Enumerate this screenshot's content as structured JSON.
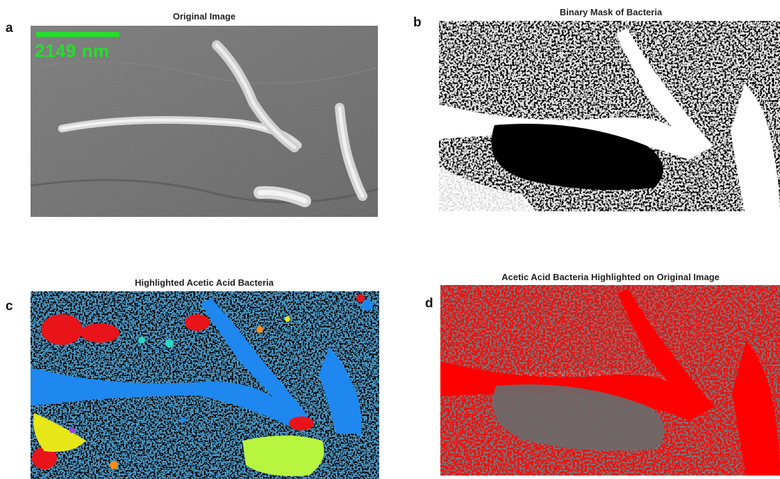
{
  "figure": {
    "panels": [
      {
        "letter": "a",
        "title": "Original Image"
      },
      {
        "letter": "b",
        "title": "Binary Mask of Bacteria"
      },
      {
        "letter": "c",
        "title": "Highlighted Acetic Acid Bacteria"
      },
      {
        "letter": "d",
        "title": "Acetic Acid Bacteria Highlighted on Original Image"
      }
    ],
    "scale_bar": {
      "label": "2149 nm",
      "color": "#22e02a"
    }
  },
  "colors": {
    "sem_gray": "#6e6e6e",
    "mask_white": "#ffffff",
    "mask_black": "#000000",
    "cluster_blue": "#1e88f0",
    "cluster_red": "#e8141a",
    "cluster_yellow": "#e6e619",
    "cluster_lime": "#b8f540",
    "overlay_red": "#ff0000"
  }
}
